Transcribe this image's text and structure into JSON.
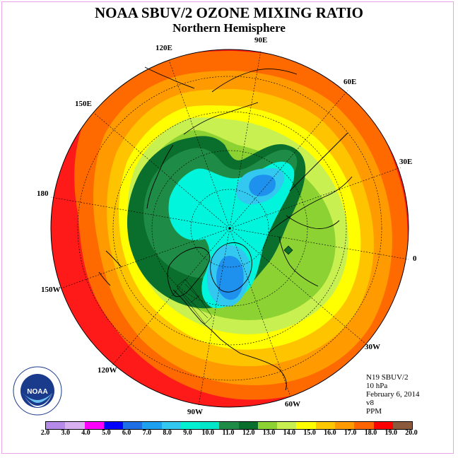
{
  "title": "NOAA SBUV/2 OZONE MIXING RATIO",
  "subtitle": "Northern Hemisphere",
  "longitude_labels": [
    "90E",
    "60E",
    "30E",
    "0",
    "30W",
    "60W",
    "90W",
    "120W",
    "150W",
    "180",
    "150E",
    "120E"
  ],
  "info": {
    "satellite": "N19 SBUV/2",
    "level": "10 hPa",
    "date": "February 6, 2014",
    "version": "v8",
    "units": "PPM"
  },
  "logo": {
    "text": "NOAA",
    "icon": "noaa-logo-icon"
  },
  "colorbar": {
    "ticks": [
      "2.0",
      "3.0",
      "4.0",
      "5.0",
      "6.0",
      "7.0",
      "8.0",
      "9.0",
      "10.0",
      "11.0",
      "12.0",
      "13.0",
      "14.0",
      "15.0",
      "16.0",
      "17.0",
      "18.0",
      "19.0",
      "20.0"
    ],
    "colors": [
      "#b58ae8",
      "#d8b0f0",
      "#ff00ff",
      "#0000ff",
      "#1e6ee6",
      "#1ea0f0",
      "#32c8f0",
      "#00f0d2",
      "#00e6c8",
      "#1e8c46",
      "#0a6e2d",
      "#8cd232",
      "#c8f050",
      "#ffff00",
      "#ffc800",
      "#ff9b00",
      "#ff6400",
      "#ff0000",
      "#8b5a3c"
    ]
  },
  "colors": {
    "red": "#ff1a1a",
    "orange_red": "#ff6a00",
    "orange": "#ff9b00",
    "light_orange": "#ffc400",
    "yellow": "#ffff00",
    "yellow_green": "#c8f050",
    "light_green": "#8cd232",
    "dark_green": "#0a6e2d",
    "green": "#1e8c46",
    "cyan": "#00f5dc",
    "light_blue": "#32c8f0",
    "blue": "#1e90ee"
  }
}
